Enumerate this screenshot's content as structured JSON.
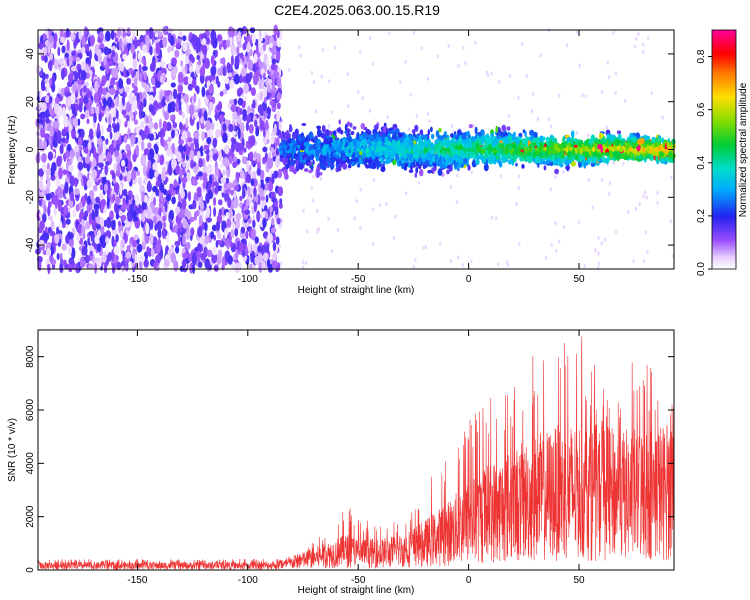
{
  "title": "C2E4.2025.063.00.15.R19",
  "chart_data": [
    {
      "type": "heatmap",
      "xlabel": "Height of straight line (km)",
      "ylabel": "Frequency (Hz)",
      "xlim": [
        -195,
        93
      ],
      "ylim": [
        -50,
        50
      ],
      "xticks": [
        -150,
        -100,
        -50,
        0,
        50
      ],
      "yticks": [
        -40,
        -20,
        0,
        20,
        40
      ],
      "grid": false,
      "colorbar": {
        "label": "Normalized spectral amplitude",
        "range": [
          0,
          0.9
        ],
        "ticks": [
          "0.0",
          "0.2",
          "0.4",
          "0.6",
          "0.8"
        ]
      },
      "regions": [
        {
          "x_range": [
            -195,
            -85
          ],
          "freq_range": [
            -50,
            50
          ],
          "amplitude": "low (noise)"
        },
        {
          "x_range": [
            -85,
            93
          ],
          "center_freq": 0,
          "band_halfwidth_hz": 8,
          "amplitude": "increasing toward positive heights"
        }
      ]
    },
    {
      "type": "line",
      "xlabel": "Height of straight line (km)",
      "ylabel": "SNR (10 * v/v)",
      "xlim": [
        -195,
        93
      ],
      "ylim": [
        0,
        9000
      ],
      "xticks": [
        -150,
        -100,
        -50,
        0,
        50
      ],
      "yticks": [
        0,
        2000,
        4000,
        6000,
        8000
      ],
      "grid": false,
      "series": [
        {
          "color": "#ee3333",
          "x": [
            -195,
            -150,
            -100,
            -85,
            -75,
            -65,
            -55,
            -50,
            -40,
            -30,
            -20,
            -10,
            0,
            10,
            20,
            30,
            40,
            50,
            60,
            70,
            80,
            93
          ],
          "envelope_max": [
            420,
            400,
            420,
            420,
            700,
            1500,
            2600,
            2000,
            1700,
            1900,
            3100,
            4500,
            5800,
            6900,
            6800,
            8300,
            8700,
            9000,
            7200,
            7700,
            8100,
            6300
          ],
          "typical": [
            180,
            180,
            180,
            200,
            400,
            600,
            800,
            700,
            700,
            800,
            1100,
            1500,
            2000,
            2400,
            2700,
            3000,
            3200,
            3300,
            3200,
            3100,
            3200,
            3300
          ]
        }
      ]
    }
  ]
}
